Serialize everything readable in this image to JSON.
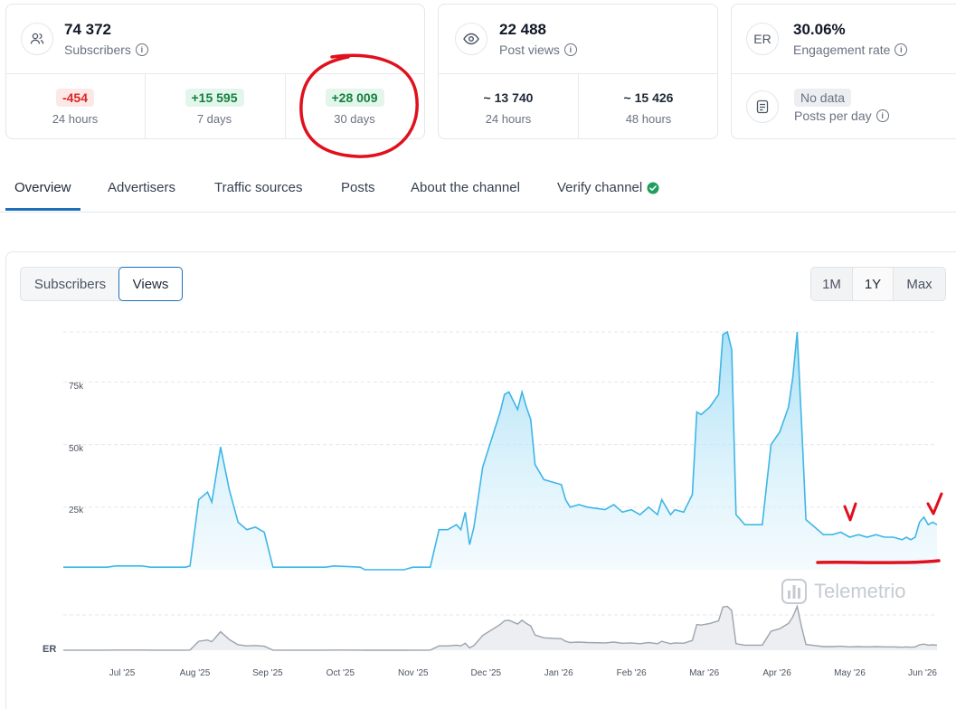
{
  "subscribers": {
    "icon": "users-icon",
    "count": "74 372",
    "label": "Subscribers",
    "changes": [
      {
        "value": "-454",
        "period": "24 hours",
        "tone": "negative"
      },
      {
        "value": "+15 595",
        "period": "7 days",
        "tone": "positive"
      },
      {
        "value": "+28 009",
        "period": "30 days",
        "tone": "positive"
      }
    ]
  },
  "post_views": {
    "icon": "eye-icon",
    "count": "22 488",
    "label": "Post views",
    "stats": [
      {
        "value": "~ 13 740",
        "period": "24 hours"
      },
      {
        "value": "~ 15 426",
        "period": "48 hours"
      }
    ]
  },
  "engagement": {
    "icon_text": "ER",
    "value": "30.06%",
    "label": "Engagement rate",
    "posts_per_day_value": "No data",
    "posts_per_day_label": "Posts per day",
    "posts_icon": "document-icon"
  },
  "tabs": [
    {
      "label": "Overview",
      "active": true
    },
    {
      "label": "Advertisers",
      "active": false
    },
    {
      "label": "Traffic sources",
      "active": false
    },
    {
      "label": "Posts",
      "active": false
    },
    {
      "label": "About the channel",
      "active": false
    },
    {
      "label": "Verify channel",
      "active": false,
      "badge": "verified-check-icon"
    }
  ],
  "chart_controls": {
    "metric_toggle": [
      {
        "label": "Subscribers",
        "selected": false
      },
      {
        "label": "Views",
        "selected": true
      }
    ],
    "range_toggle": [
      {
        "label": "1M",
        "selected": false
      },
      {
        "label": "1Y",
        "selected": true
      },
      {
        "label": "Max",
        "selected": false
      }
    ]
  },
  "watermark": "Telemetrio",
  "er_label": "ER",
  "colors": {
    "accent": "#1d6fb8",
    "views_line": "#3fb6e6",
    "er_line": "#9ca3af",
    "annotation": "#e0101d"
  },
  "chart_data": {
    "type": "area",
    "y_ticks": [
      "25k",
      "50k",
      "75k"
    ],
    "ylim": [
      0,
      95000
    ],
    "x_ticks": [
      "Jul '25",
      "Aug '25",
      "Sep '25",
      "Oct '25",
      "Nov '25",
      "Dec '25",
      "Jan '26",
      "Feb '26",
      "Mar '26",
      "Apr '26",
      "May '26",
      "Jun '26"
    ],
    "grid": true,
    "series": [
      {
        "values": [
          [
            0.0,
            1000
          ],
          [
            0.05,
            1000
          ],
          [
            0.06,
            1500
          ],
          [
            0.09,
            1500
          ],
          [
            0.1,
            1000
          ],
          [
            0.14,
            1000
          ],
          [
            0.145,
            1500
          ],
          [
            0.155,
            28000
          ],
          [
            0.165,
            31000
          ],
          [
            0.17,
            27000
          ],
          [
            0.18,
            49000
          ],
          [
            0.19,
            32000
          ],
          [
            0.2,
            19000
          ],
          [
            0.21,
            16000
          ],
          [
            0.22,
            17000
          ],
          [
            0.23,
            15000
          ],
          [
            0.24,
            1000
          ],
          [
            0.3,
            1000
          ],
          [
            0.31,
            1500
          ],
          [
            0.34,
            1000
          ],
          [
            0.345,
            0
          ],
          [
            0.39,
            0
          ],
          [
            0.4,
            1000
          ],
          [
            0.42,
            1000
          ],
          [
            0.43,
            16000
          ],
          [
            0.44,
            16000
          ],
          [
            0.45,
            18000
          ],
          [
            0.455,
            16000
          ],
          [
            0.46,
            23000
          ],
          [
            0.465,
            10000
          ],
          [
            0.47,
            17000
          ],
          [
            0.48,
            41000
          ],
          [
            0.5,
            63000
          ],
          [
            0.505,
            70000
          ],
          [
            0.51,
            71000
          ],
          [
            0.52,
            64000
          ],
          [
            0.525,
            71000
          ],
          [
            0.53,
            65000
          ],
          [
            0.535,
            60000
          ],
          [
            0.54,
            42000
          ],
          [
            0.55,
            36000
          ],
          [
            0.56,
            35000
          ],
          [
            0.57,
            34000
          ],
          [
            0.575,
            28000
          ],
          [
            0.58,
            25000
          ],
          [
            0.59,
            26000
          ],
          [
            0.6,
            25000
          ],
          [
            0.62,
            24000
          ],
          [
            0.63,
            26000
          ],
          [
            0.64,
            23000
          ],
          [
            0.65,
            24000
          ],
          [
            0.66,
            22000
          ],
          [
            0.67,
            25000
          ],
          [
            0.68,
            22000
          ],
          [
            0.685,
            28000
          ],
          [
            0.69,
            25000
          ],
          [
            0.695,
            22000
          ],
          [
            0.7,
            24000
          ],
          [
            0.71,
            23000
          ],
          [
            0.72,
            30000
          ],
          [
            0.725,
            63000
          ],
          [
            0.73,
            62000
          ],
          [
            0.74,
            65000
          ],
          [
            0.75,
            70000
          ],
          [
            0.755,
            94000
          ],
          [
            0.76,
            95000
          ],
          [
            0.765,
            88000
          ],
          [
            0.77,
            22000
          ],
          [
            0.78,
            18000
          ],
          [
            0.79,
            18000
          ],
          [
            0.8,
            18000
          ],
          [
            0.81,
            50000
          ],
          [
            0.82,
            55000
          ],
          [
            0.83,
            65000
          ],
          [
            0.835,
            77000
          ],
          [
            0.84,
            95000
          ],
          [
            0.845,
            58000
          ],
          [
            0.85,
            20000
          ],
          [
            0.86,
            17000
          ],
          [
            0.87,
            14000
          ],
          [
            0.88,
            14000
          ],
          [
            0.89,
            15000
          ],
          [
            0.9,
            13000
          ],
          [
            0.91,
            14000
          ],
          [
            0.92,
            13000
          ],
          [
            0.93,
            14000
          ],
          [
            0.94,
            13000
          ],
          [
            0.95,
            13000
          ],
          [
            0.96,
            12000
          ],
          [
            0.965,
            13000
          ],
          [
            0.97,
            12000
          ],
          [
            0.975,
            13000
          ],
          [
            0.98,
            19000
          ],
          [
            0.985,
            21000
          ],
          [
            0.99,
            18000
          ],
          [
            0.995,
            19000
          ],
          [
            1.0,
            18000
          ]
        ]
      }
    ]
  }
}
